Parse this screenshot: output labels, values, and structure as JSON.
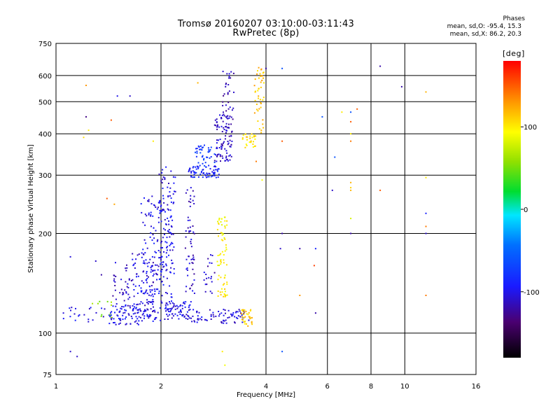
{
  "chart_data": {
    "type": "scatter",
    "title": "Tromsø 20160207 03:10:00-03:11:43",
    "subtitle": "RwPretec (8p)",
    "xlabel": "Frequency [MHz]",
    "ylabel": "Stationary phase Virtual Height [km]",
    "x_scale": "log",
    "y_scale": "log",
    "xlim": [
      1,
      16
    ],
    "ylim": [
      75,
      750
    ],
    "x_ticks": [
      "1",
      "2",
      "4",
      "6",
      "8",
      "10",
      "16"
    ],
    "x_tick_values": [
      1,
      2,
      4,
      6,
      8,
      10,
      16
    ],
    "y_ticks": [
      "75",
      "100",
      "200",
      "300",
      "400",
      "500",
      "600",
      "750"
    ],
    "y_tick_values": [
      75,
      100,
      200,
      300,
      400,
      500,
      600,
      750
    ],
    "grid": true,
    "stats": {
      "heading": "Phases",
      "line_o": "mean, sd,O: -95.4, 15.3",
      "line_x": "mean, sd,X:  86.2, 20.3"
    },
    "colorbar": {
      "label": "[deg]",
      "range": [
        -180,
        180
      ],
      "ticks": [
        "100",
        "0",
        "-100"
      ],
      "tick_values": [
        100,
        0,
        -100
      ]
    },
    "clusters": [
      {
        "f": [
          1.42,
          1.75
        ],
        "h": [
          106,
          122
        ],
        "phase": -100,
        "n": 70
      },
      {
        "f": [
          1.45,
          1.65
        ],
        "h": [
          120,
          165
        ],
        "phase": -110,
        "n": 40
      },
      {
        "f": [
          1.65,
          1.95
        ],
        "h": [
          110,
          175
        ],
        "phase": -105,
        "n": 80
      },
      {
        "f": [
          1.75,
          2.15
        ],
        "h": [
          108,
          260
        ],
        "phase": -100,
        "n": 190
      },
      {
        "f": [
          1.95,
          2.2
        ],
        "h": [
          150,
          320
        ],
        "phase": -105,
        "n": 80
      },
      {
        "f": [
          2.05,
          2.45
        ],
        "h": [
          110,
          125
        ],
        "phase": -100,
        "n": 70
      },
      {
        "f": [
          2.35,
          2.5
        ],
        "h": [
          110,
          285
        ],
        "phase": -110,
        "n": 60
      },
      {
        "f": [
          2.4,
          2.95
        ],
        "h": [
          295,
          320
        ],
        "phase": -90,
        "n": 70
      },
      {
        "f": [
          2.5,
          2.85
        ],
        "h": [
          320,
          370
        ],
        "phase": -75,
        "n": 40
      },
      {
        "f": [
          2.85,
          3.2
        ],
        "h": [
          330,
          460
        ],
        "phase": -110,
        "n": 100
      },
      {
        "f": [
          3.0,
          3.25
        ],
        "h": [
          440,
          620
        ],
        "phase": -115,
        "n": 30
      },
      {
        "f": [
          2.45,
          3.6
        ],
        "h": [
          107,
          118
        ],
        "phase": -105,
        "n": 80
      },
      {
        "f": [
          2.65,
          2.85
        ],
        "h": [
          130,
          175
        ],
        "phase": -110,
        "n": 20
      },
      {
        "f": [
          2.9,
          3.1
        ],
        "h": [
          160,
          225
        ],
        "phase": 95,
        "n": 45
      },
      {
        "f": [
          2.9,
          3.1
        ],
        "h": [
          128,
          150
        ],
        "phase": 100,
        "n": 25
      },
      {
        "f": [
          3.4,
          3.65
        ],
        "h": [
          105,
          118
        ],
        "phase": 110,
        "n": 35
      },
      {
        "f": [
          3.4,
          3.75
        ],
        "h": [
          360,
          400
        ],
        "phase": 105,
        "n": 30
      },
      {
        "f": [
          3.7,
          3.95
        ],
        "h": [
          400,
          640
        ],
        "phase": 115,
        "n": 45
      },
      {
        "f": [
          1.05,
          1.4
        ],
        "h": [
          108,
          120
        ],
        "phase": -100,
        "n": 20
      },
      {
        "f": [
          1.25,
          1.45
        ],
        "h": [
          110,
          125
        ],
        "phase": 60,
        "n": 10
      }
    ],
    "sparse_points": [
      [
        1.05,
        115,
        -105
      ],
      [
        1.1,
        170,
        -105
      ],
      [
        1.1,
        88,
        -110
      ],
      [
        1.15,
        85,
        -110
      ],
      [
        1.2,
        390,
        105
      ],
      [
        1.22,
        560,
        130
      ],
      [
        1.22,
        450,
        -130
      ],
      [
        1.24,
        410,
        100
      ],
      [
        1.3,
        165,
        -110
      ],
      [
        1.35,
        150,
        -120
      ],
      [
        1.4,
        255,
        150
      ],
      [
        1.44,
        440,
        150
      ],
      [
        1.47,
        245,
        125
      ],
      [
        1.5,
        520,
        -100
      ],
      [
        1.63,
        520,
        -110
      ],
      [
        1.9,
        380,
        100
      ],
      [
        2.55,
        570,
        120
      ],
      [
        3.0,
        88,
        100
      ],
      [
        3.05,
        80,
        90
      ],
      [
        3.75,
        330,
        140
      ],
      [
        3.9,
        290,
        90
      ],
      [
        4.0,
        630,
        -120
      ],
      [
        4.45,
        630,
        -60
      ],
      [
        4.45,
        380,
        150
      ],
      [
        4.45,
        200,
        -120
      ],
      [
        4.45,
        88,
        -60
      ],
      [
        4.4,
        180,
        -110
      ],
      [
        5.0,
        180,
        -120
      ],
      [
        5.0,
        130,
        130
      ],
      [
        5.5,
        160,
        160
      ],
      [
        5.55,
        180,
        -90
      ],
      [
        5.55,
        115,
        -120
      ],
      [
        5.8,
        450,
        -60
      ],
      [
        6.2,
        270,
        -110
      ],
      [
        6.3,
        340,
        -60
      ],
      [
        6.6,
        465,
        100
      ],
      [
        7.0,
        465,
        -60
      ],
      [
        7.0,
        435,
        150
      ],
      [
        7.0,
        400,
        100
      ],
      [
        7.0,
        380,
        140
      ],
      [
        7.0,
        285,
        120
      ],
      [
        7.0,
        275,
        110
      ],
      [
        7.0,
        270,
        120
      ],
      [
        7.0,
        222,
        80
      ],
      [
        7.0,
        200,
        -120
      ],
      [
        7.3,
        475,
        150
      ],
      [
        8.5,
        640,
        -120
      ],
      [
        8.5,
        270,
        150
      ],
      [
        9.8,
        555,
        -120
      ],
      [
        11.5,
        535,
        120
      ],
      [
        11.5,
        295,
        100
      ],
      [
        11.5,
        230,
        -90
      ],
      [
        11.5,
        210,
        140
      ],
      [
        11.5,
        200,
        -110
      ],
      [
        11.5,
        130,
        140
      ]
    ]
  }
}
